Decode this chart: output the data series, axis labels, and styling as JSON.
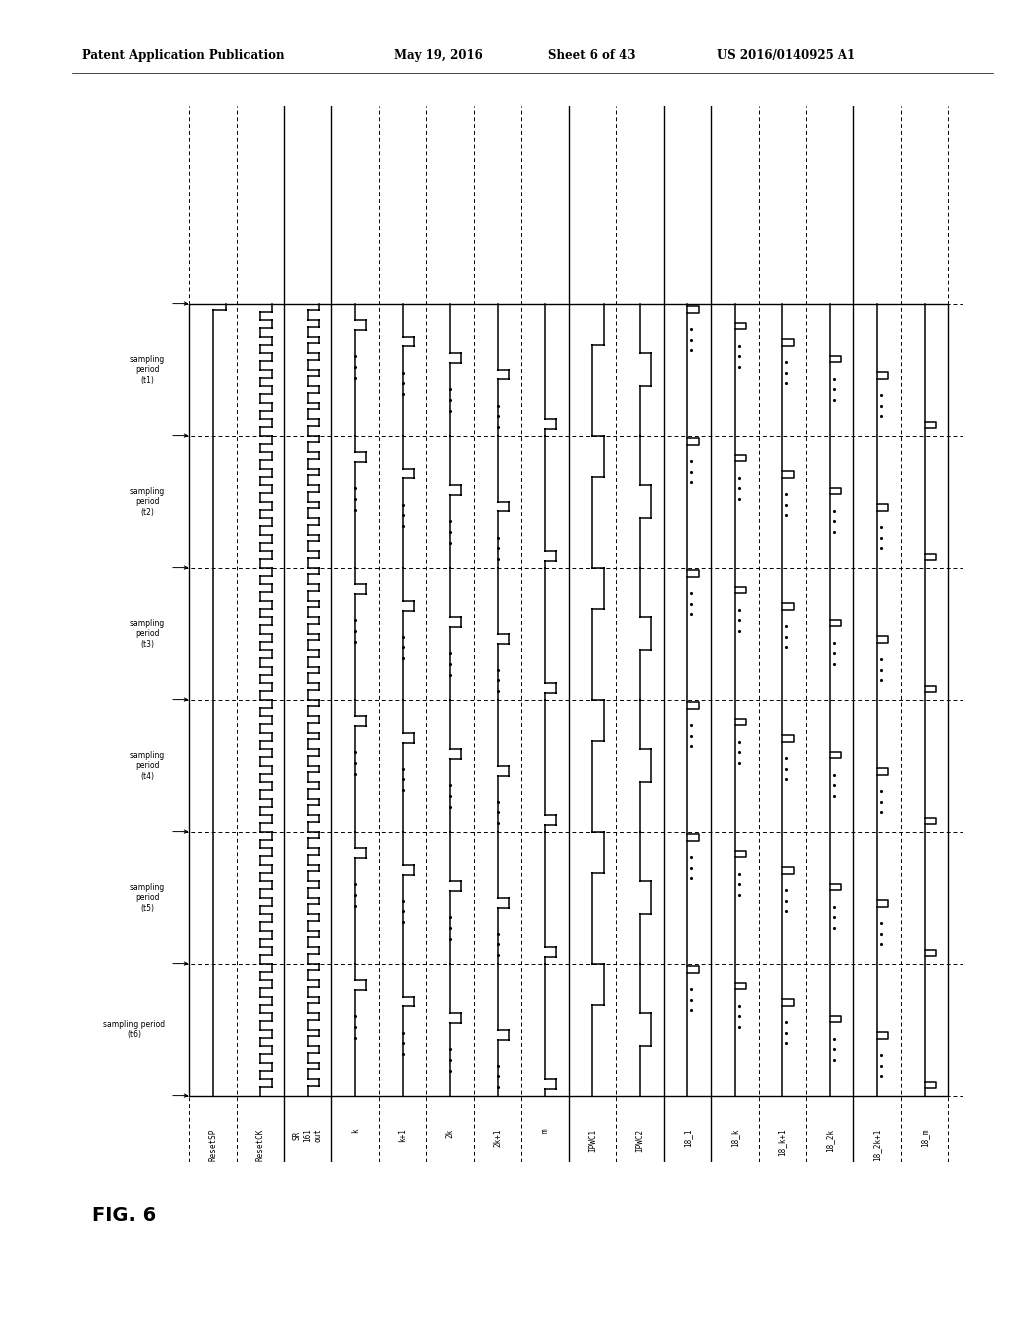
{
  "header_left": "Patent Application Publication",
  "header_mid1": "May 19, 2016",
  "header_mid2": "Sheet 6 of 43",
  "header_right": "US 2016/0140925 A1",
  "fig_label": "FIG. 6",
  "bg_color": "#ffffff",
  "period_labels": [
    "sampling\nperiod\n(t1)",
    "sampling\nperiod\n(t2)",
    "sampling\nperiod\n(t3)",
    "sampling\nperiod\n(t4)",
    "sampling\nperiod\n(t5)",
    "sampling period\n(t6)"
  ],
  "signal_cols": [
    {
      "label": "ResetSP",
      "type": "resetsp"
    },
    {
      "label": "ResetCK",
      "type": "clock"
    },
    {
      "label": "SR\n161\nout",
      "type": "sr_out"
    },
    {
      "label": "k",
      "type": "pulse",
      "cidx": 1
    },
    {
      "label": "k+1",
      "type": "pulse",
      "cidx": 2
    },
    {
      "label": "2k",
      "type": "pulse",
      "cidx": 3
    },
    {
      "label": "2k+1",
      "type": "pulse",
      "cidx": 4
    },
    {
      "label": "m",
      "type": "pulse",
      "cidx": 7
    },
    {
      "label": "IPWC1",
      "type": "ipwc1"
    },
    {
      "label": "IPWC2",
      "type": "ipwc2"
    },
    {
      "label": "18_1",
      "type": "out18",
      "cidx": 1
    },
    {
      "label": "18_k",
      "type": "out18",
      "cidx": 1
    },
    {
      "label": "18_k+1",
      "type": "out18",
      "cidx": 2
    },
    {
      "label": "18_2k",
      "type": "out18",
      "cidx": 3
    },
    {
      "label": "18_2k+1",
      "type": "out18",
      "cidx": 4
    },
    {
      "label": "18_m",
      "type": "out18",
      "cidx": 7
    }
  ],
  "n_periods": 6,
  "clocks_per_period": 8,
  "group_seps_after_col": [
    1,
    2,
    7,
    9,
    10,
    13
  ]
}
